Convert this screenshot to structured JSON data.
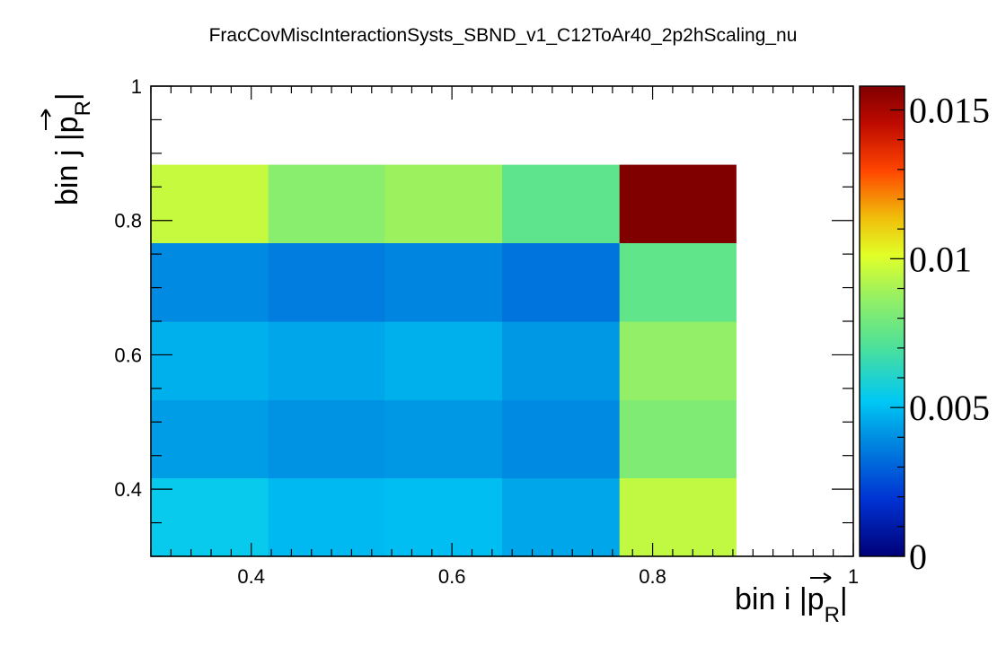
{
  "chart_data": {
    "type": "heatmap",
    "title": "FracCovMiscInteractionSysts_SBND_v1_C12ToAr40_2p2hScaling_nu",
    "xlabel": {
      "prefix": "bin i |",
      "symbol": "p",
      "subscript": "R",
      "suffix": "|"
    },
    "ylabel": {
      "prefix": "bin j |",
      "symbol": "p",
      "subscript": "R",
      "suffix": "|"
    },
    "xlim": [
      0.3,
      1.0
    ],
    "ylim": [
      0.3,
      1.0
    ],
    "x_ticks": [
      {
        "value": 0.4,
        "label": "0.4"
      },
      {
        "value": 0.6,
        "label": "0.6"
      },
      {
        "value": 0.8,
        "label": "0.8"
      },
      {
        "value": 1.0,
        "label": "1"
      }
    ],
    "y_ticks": [
      {
        "value": 0.4,
        "label": "0.4"
      },
      {
        "value": 0.6,
        "label": "0.6"
      },
      {
        "value": 0.8,
        "label": "0.8"
      },
      {
        "value": 1.0,
        "label": "1"
      }
    ],
    "x_bin_edges": [
      0.3,
      0.417,
      0.533,
      0.65,
      0.767,
      0.883
    ],
    "y_bin_edges": [
      0.3,
      0.417,
      0.533,
      0.65,
      0.767,
      0.883
    ],
    "z_values_rows_bottom_to_top": [
      [
        0.0054,
        0.0049,
        0.005,
        0.0045,
        0.0095
      ],
      [
        0.0043,
        0.0041,
        0.0042,
        0.0039,
        0.0082
      ],
      [
        0.0047,
        0.0045,
        0.0047,
        0.0042,
        0.0086
      ],
      [
        0.0039,
        0.0036,
        0.0038,
        0.0034,
        0.0075
      ],
      [
        0.0096,
        0.0084,
        0.0088,
        0.0074,
        0.0158
      ]
    ],
    "zlim": [
      0,
      0.0158
    ],
    "z_ticks": [
      {
        "value": 0,
        "label": "0"
      },
      {
        "value": 0.005,
        "label": "0.005"
      },
      {
        "value": 0.01,
        "label": "0.01"
      },
      {
        "value": 0.015,
        "label": "0.015"
      }
    ],
    "colormap": "rainbow (blue to dark red)",
    "grid": false,
    "legend": "color scale on right"
  }
}
